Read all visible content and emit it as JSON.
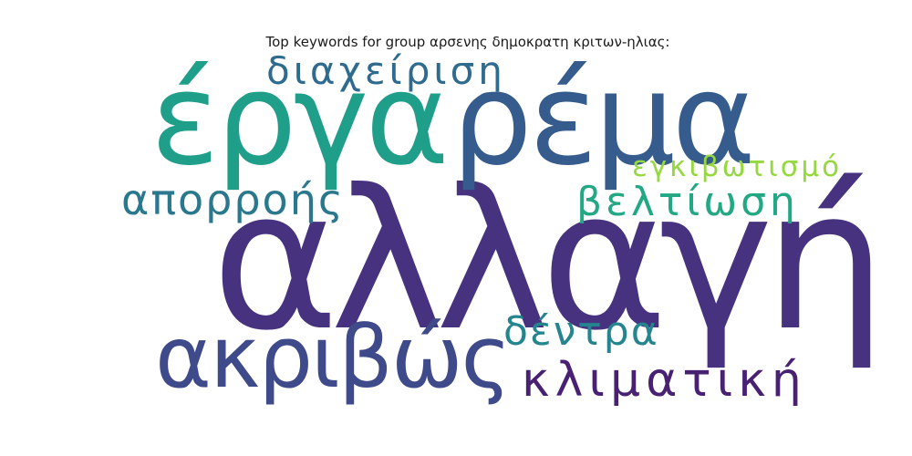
{
  "title": "Top keywords for group αρσενης δημοκρατη κριτων-ηλιας:",
  "words": [
    {
      "text": "αλλαγή",
      "color": "#46327e"
    },
    {
      "text": "έργα",
      "color": "#1f9e89"
    },
    {
      "text": "ρέμα",
      "color": "#365c8d"
    },
    {
      "text": "ακριβώς",
      "color": "#3e4a89"
    },
    {
      "text": "διαχείριση",
      "color": "#2f6b8e"
    },
    {
      "text": "απορροής",
      "color": "#2a788e"
    },
    {
      "text": "βελτίωση",
      "color": "#22a884"
    },
    {
      "text": "εγκιβωτισμό",
      "color": "#95d840"
    },
    {
      "text": "δέντρα",
      "color": "#25858e"
    },
    {
      "text": "κλιματική",
      "color": "#482173"
    }
  ]
}
